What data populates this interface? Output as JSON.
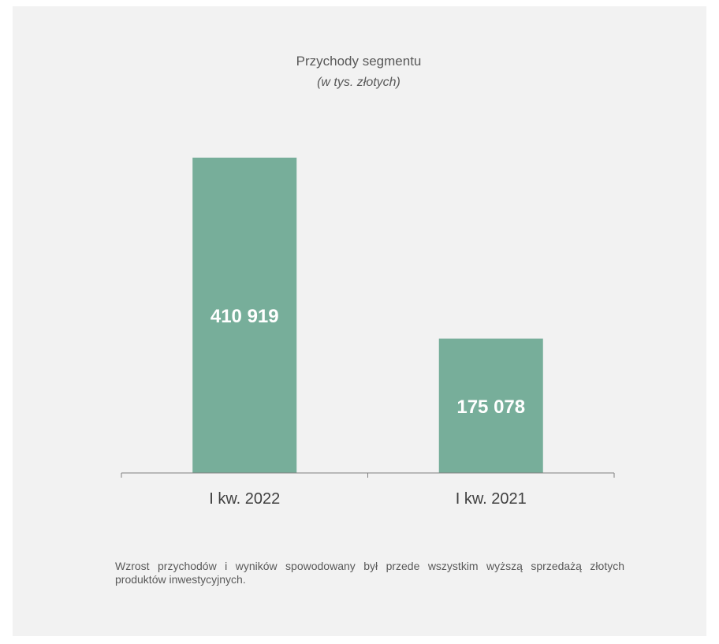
{
  "chart_data": {
    "type": "bar",
    "title": "Przychody segmentu",
    "subtitle": "(w tys. złotych)",
    "categories": [
      "I kw. 2022",
      "I kw. 2021"
    ],
    "values": [
      410919,
      175078
    ],
    "data_labels": [
      "410 919",
      "175 078"
    ],
    "ylim": [
      0,
      440000
    ],
    "grid": false,
    "legend": "none",
    "bar_color": "#77ae9a"
  },
  "note": {
    "text": "Wzrost przychodów i wyników spowodowany był przede wszystkim wyższą sprzedażą złotych produktów inwestycyjnych."
  },
  "colors": {
    "background": "#f2f2f2",
    "axis": "#808080"
  }
}
